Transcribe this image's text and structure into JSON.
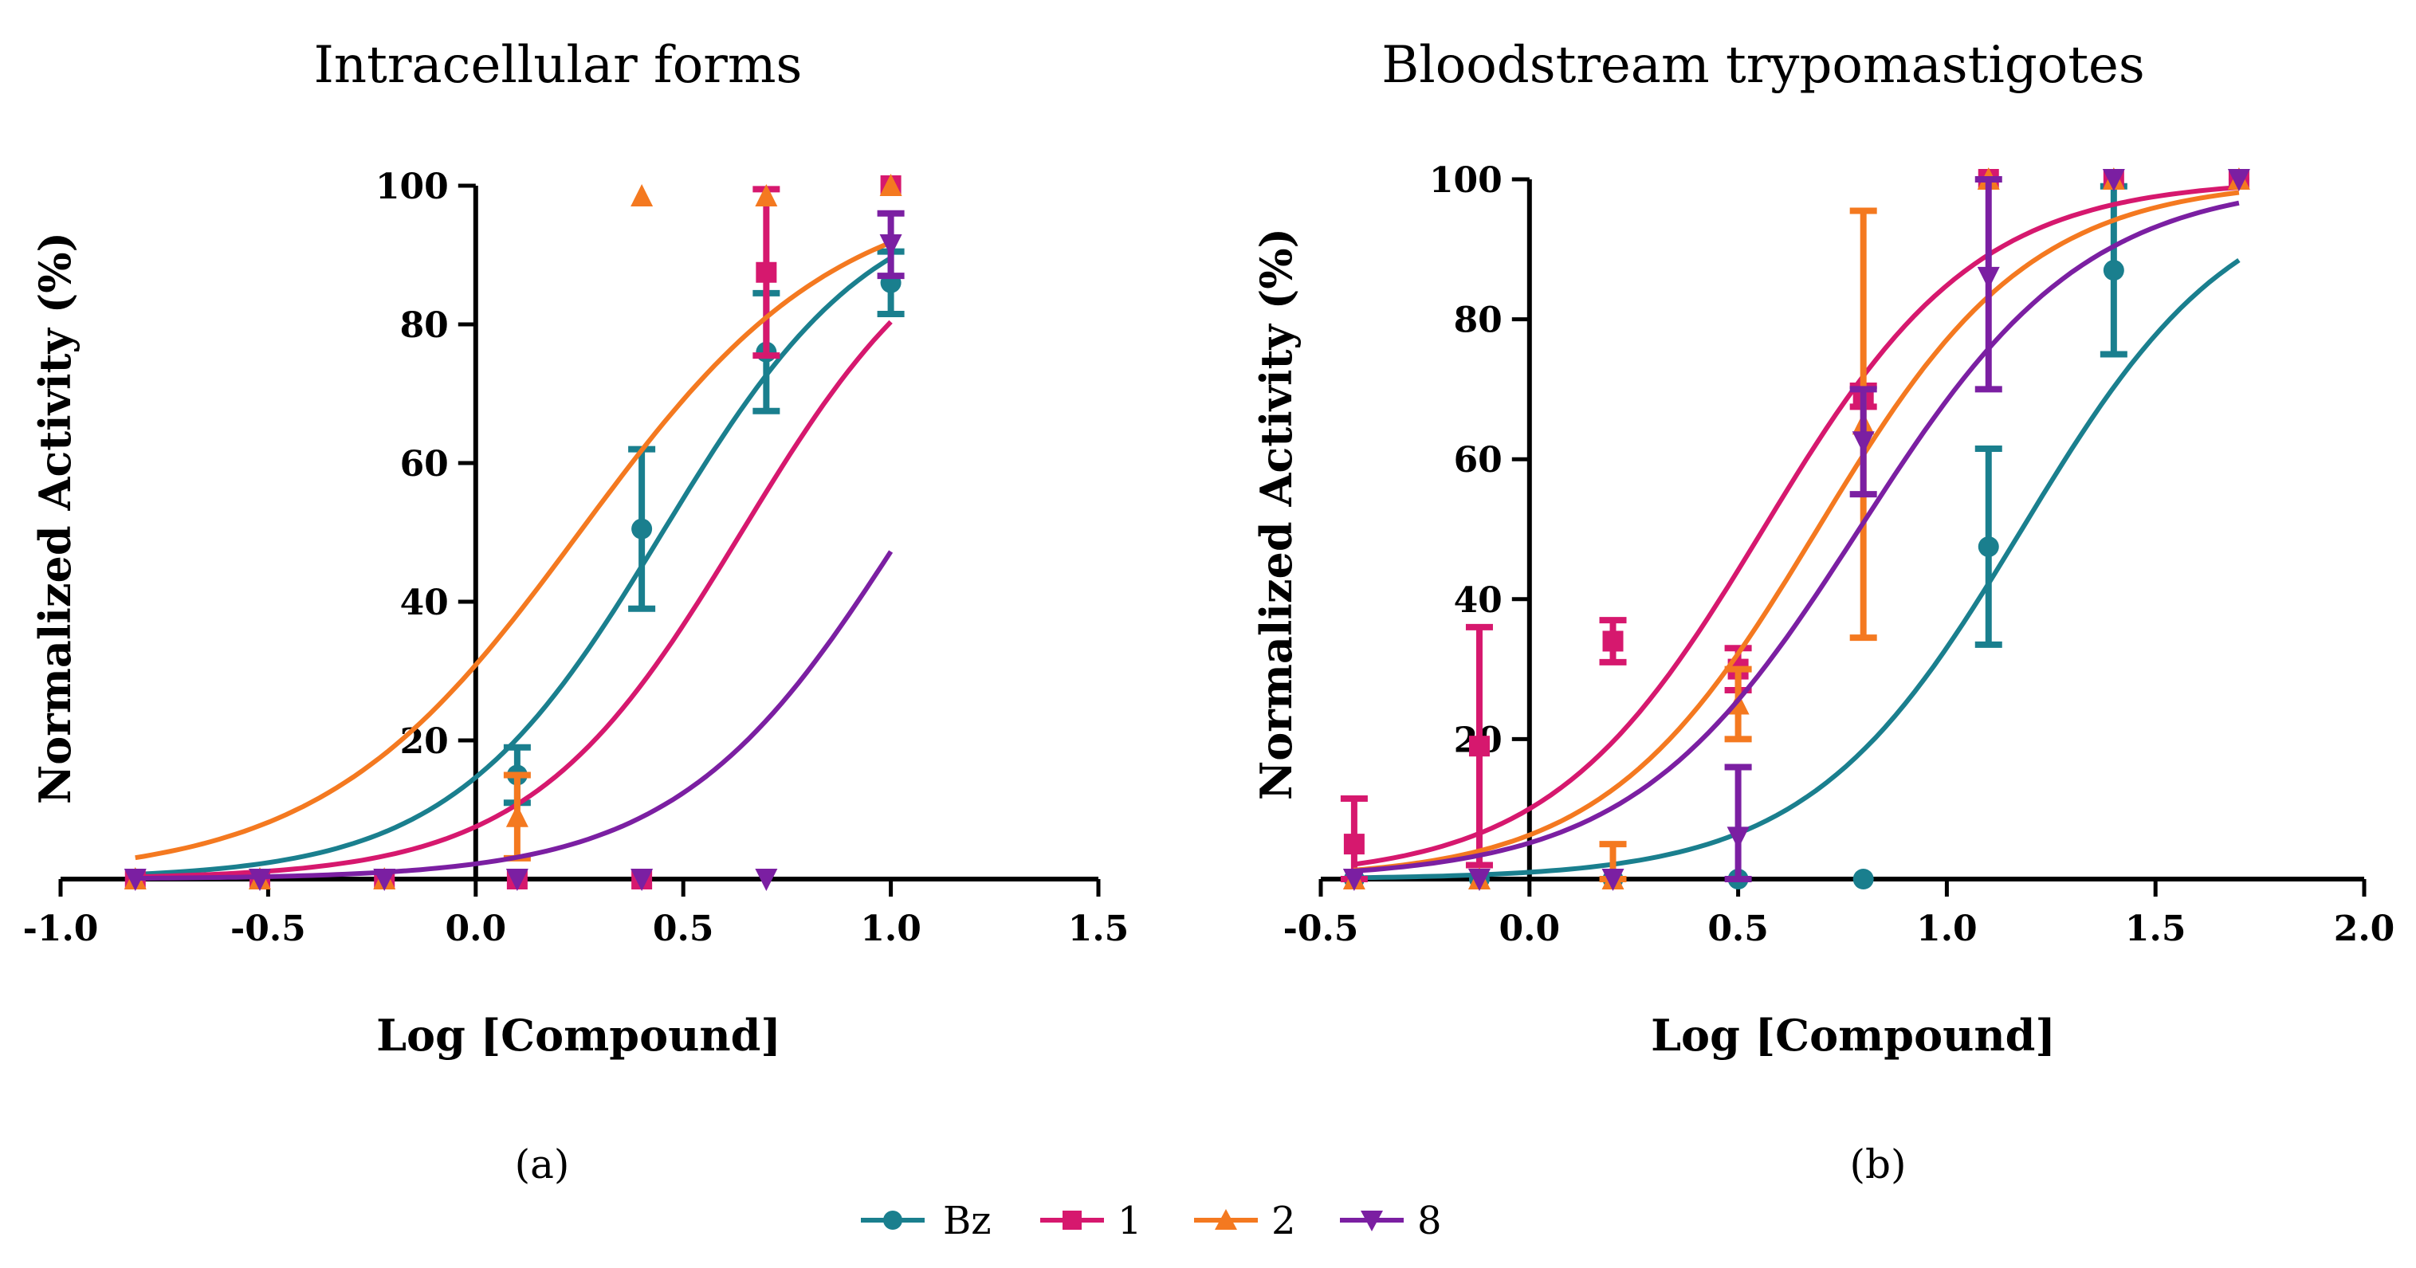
{
  "chart_data": [
    {
      "type": "line",
      "panel_label": "(a)",
      "title": "Intracellular forms",
      "xlabel": "Log [Compound]",
      "ylabel": "Normalized Activity (%)",
      "xlim": [
        -1.0,
        1.5
      ],
      "ylim": [
        0,
        100
      ],
      "x_ticks": [
        -1.0,
        -0.5,
        0.0,
        0.5,
        1.0,
        1.5
      ],
      "x_tick_labels": [
        "-1.0",
        "-0.5",
        "0.0",
        "0.5",
        "1.0",
        "1.5"
      ],
      "y_ticks": [
        20,
        40,
        60,
        80,
        100
      ],
      "y_tick_labels": [
        "20",
        "40",
        "60",
        "80",
        "100"
      ],
      "series": [
        {
          "name": "Bz",
          "color": "#1a7f8e",
          "marker": "circle",
          "curve": {
            "bottom": 0,
            "top": 100,
            "log_ec50": 0.45,
            "hill": 1.7,
            "x_range": [
              -0.82,
              1.0
            ]
          },
          "points": [
            {
              "x": -0.82,
              "y": 0
            },
            {
              "x": -0.52,
              "y": 0
            },
            {
              "x": -0.22,
              "y": 0
            },
            {
              "x": 0.1,
              "y": 15,
              "err": 4
            },
            {
              "x": 0.4,
              "y": 50.5,
              "err": 11.5
            },
            {
              "x": 0.7,
              "y": 76,
              "err": 8.5
            },
            {
              "x": 1.0,
              "y": 86,
              "err": 4.5
            }
          ]
        },
        {
          "name": "1",
          "color": "#d6186e",
          "marker": "square",
          "curve": {
            "bottom": 0,
            "top": 100,
            "log_ec50": 0.64,
            "hill": 1.7,
            "x_range": [
              -0.82,
              1.0
            ]
          },
          "points": [
            {
              "x": -0.82,
              "y": 0
            },
            {
              "x": -0.52,
              "y": 0
            },
            {
              "x": -0.22,
              "y": 0
            },
            {
              "x": 0.1,
              "y": 0
            },
            {
              "x": 0.4,
              "y": 0
            },
            {
              "x": 0.7,
              "y": 87.5,
              "err": 12
            },
            {
              "x": 1.0,
              "y": 100
            }
          ]
        },
        {
          "name": "2",
          "color": "#f47920",
          "marker": "triangle-up",
          "curve": {
            "bottom": 0,
            "top": 100,
            "log_ec50": 0.25,
            "hill": 1.4,
            "x_range": [
              -0.82,
              1.0
            ]
          },
          "points": [
            {
              "x": -0.82,
              "y": 0
            },
            {
              "x": -0.52,
              "y": 0
            },
            {
              "x": -0.22,
              "y": 0
            },
            {
              "x": 0.1,
              "y": 9,
              "err": 6
            },
            {
              "x": 0.4,
              "y": 98.5
            },
            {
              "x": 0.7,
              "y": 98.5
            },
            {
              "x": 1.0,
              "y": 100
            }
          ]
        },
        {
          "name": "8",
          "color": "#7b1fa2",
          "marker": "triangle-down",
          "curve": {
            "bottom": 0,
            "top": 100,
            "log_ec50": 1.03,
            "hill": 1.6,
            "x_range": [
              -0.82,
              1.0
            ]
          },
          "points": [
            {
              "x": -0.82,
              "y": 0
            },
            {
              "x": -0.52,
              "y": 0
            },
            {
              "x": -0.22,
              "y": 0
            },
            {
              "x": 0.1,
              "y": 0
            },
            {
              "x": 0.4,
              "y": 0
            },
            {
              "x": 0.7,
              "y": 0
            },
            {
              "x": 1.0,
              "y": 91.5,
              "err": 4.5
            }
          ]
        }
      ]
    },
    {
      "type": "line",
      "panel_label": "(b)",
      "title": "Bloodstream trypomastigotes",
      "xlabel": "Log [Compound]",
      "ylabel": "Normalized Activity (%)",
      "xlim": [
        -0.5,
        2.0
      ],
      "ylim": [
        0,
        100
      ],
      "x_ticks": [
        -0.5,
        0.0,
        0.5,
        1.0,
        1.5,
        2.0
      ],
      "x_tick_labels": [
        "-0.5",
        "0.0",
        "0.5",
        "1.0",
        "1.5",
        "2.0"
      ],
      "y_ticks": [
        20,
        40,
        60,
        80,
        100
      ],
      "y_tick_labels": [
        "20",
        "40",
        "60",
        "80",
        "100"
      ],
      "series": [
        {
          "name": "Bz",
          "color": "#1a7f8e",
          "marker": "circle",
          "curve": {
            "bottom": 0,
            "top": 100,
            "log_ec50": 1.18,
            "hill": 1.7,
            "x_range": [
              -0.42,
              1.7
            ]
          },
          "points": [
            {
              "x": -0.42,
              "y": 0
            },
            {
              "x": -0.12,
              "y": 0
            },
            {
              "x": 0.2,
              "y": 0
            },
            {
              "x": 0.5,
              "y": 0
            },
            {
              "x": 0.8,
              "y": 0
            },
            {
              "x": 1.1,
              "y": 47.5,
              "err": 14
            },
            {
              "x": 1.4,
              "y": 87,
              "err": 12
            },
            {
              "x": 1.7,
              "y": 100
            }
          ]
        },
        {
          "name": "1",
          "color": "#d6186e",
          "marker": "square",
          "curve": {
            "bottom": 0,
            "top": 100,
            "log_ec50": 0.56,
            "hill": 1.7,
            "x_range": [
              -0.42,
              1.7
            ]
          },
          "points": [
            {
              "x": -0.42,
              "y": 5,
              "err": 6.5
            },
            {
              "x": -0.12,
              "y": 19,
              "err": 17
            },
            {
              "x": 0.2,
              "y": 34,
              "err": 3
            },
            {
              "x": 0.5,
              "y": 30,
              "err": 3
            },
            {
              "x": 0.8,
              "y": 69,
              "err": 1.5
            },
            {
              "x": 1.1,
              "y": 100
            },
            {
              "x": 1.4,
              "y": 100
            },
            {
              "x": 1.7,
              "y": 100
            }
          ]
        },
        {
          "name": "2",
          "color": "#f47920",
          "marker": "triangle-up",
          "curve": {
            "bottom": 0,
            "top": 100,
            "log_ec50": 0.69,
            "hill": 1.7,
            "x_range": [
              -0.42,
              1.7
            ]
          },
          "points": [
            {
              "x": -0.42,
              "y": 0
            },
            {
              "x": -0.12,
              "y": 0
            },
            {
              "x": 0.2,
              "y": 0,
              "err": 5
            },
            {
              "x": 0.5,
              "y": 25,
              "err": 5
            },
            {
              "x": 0.8,
              "y": 65,
              "err": 30.5
            },
            {
              "x": 1.1,
              "y": 100
            },
            {
              "x": 1.4,
              "y": 100
            },
            {
              "x": 1.7,
              "y": 100
            }
          ]
        },
        {
          "name": "8",
          "color": "#7b1fa2",
          "marker": "triangle-down",
          "curve": {
            "bottom": 0,
            "top": 100,
            "log_ec50": 0.79,
            "hill": 1.6,
            "x_range": [
              -0.42,
              1.7
            ]
          },
          "points": [
            {
              "x": -0.42,
              "y": 0
            },
            {
              "x": -0.12,
              "y": 0
            },
            {
              "x": 0.2,
              "y": 0
            },
            {
              "x": 0.5,
              "y": 6,
              "err": 10
            },
            {
              "x": 0.8,
              "y": 62.5,
              "err": 7.5
            },
            {
              "x": 1.1,
              "y": 86,
              "err": 16
            },
            {
              "x": 1.4,
              "y": 100
            },
            {
              "x": 1.7,
              "y": 100
            }
          ]
        }
      ]
    }
  ],
  "legend": {
    "placement": "bottom-center",
    "items": [
      {
        "label": "Bz",
        "color": "#1a7f8e",
        "marker": "circle"
      },
      {
        "label": "1",
        "color": "#d6186e",
        "marker": "square"
      },
      {
        "label": "2",
        "color": "#f47920",
        "marker": "triangle-up"
      },
      {
        "label": "8",
        "color": "#7b1fa2",
        "marker": "triangle-down"
      }
    ]
  }
}
